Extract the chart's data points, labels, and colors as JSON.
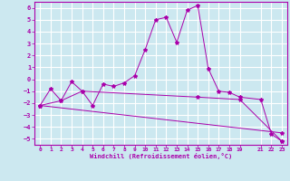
{
  "xlabel": "Windchill (Refroidissement éolien,°C)",
  "background_color": "#cce8f0",
  "line_color": "#aa00aa",
  "grid_color": "#ffffff",
  "xlim": [
    -0.5,
    23.5
  ],
  "ylim": [
    -5.5,
    6.5
  ],
  "xticks": [
    0,
    1,
    2,
    3,
    4,
    5,
    6,
    7,
    8,
    9,
    10,
    11,
    12,
    13,
    14,
    15,
    16,
    17,
    18,
    19,
    21,
    22,
    23
  ],
  "yticks": [
    -5,
    -4,
    -3,
    -2,
    -1,
    0,
    1,
    2,
    3,
    4,
    5,
    6
  ],
  "line1_x": [
    0,
    1,
    2,
    3,
    4,
    5,
    6,
    7,
    8,
    9,
    10,
    11,
    12,
    13,
    14,
    15,
    16,
    17,
    18,
    19,
    21,
    22,
    23
  ],
  "line1_y": [
    -2.2,
    -0.8,
    -1.8,
    -0.2,
    -1.0,
    -2.2,
    -0.4,
    -0.6,
    -0.3,
    0.3,
    2.5,
    5.0,
    5.2,
    3.1,
    5.8,
    6.2,
    0.9,
    -1.0,
    -1.1,
    -1.5,
    -1.7,
    -4.6,
    -5.2
  ],
  "line2_x": [
    0,
    2,
    4,
    15,
    19,
    23
  ],
  "line2_y": [
    -2.2,
    -1.8,
    -1.0,
    -1.5,
    -1.7,
    -5.2
  ],
  "line3_x": [
    0,
    23
  ],
  "line3_y": [
    -2.2,
    -4.5
  ]
}
